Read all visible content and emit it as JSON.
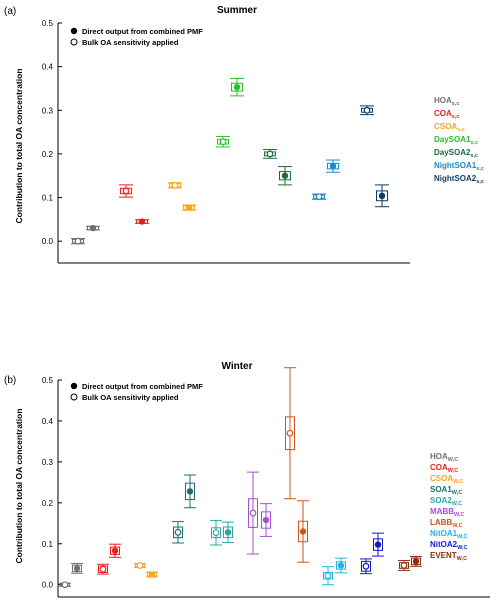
{
  "chart_data": [
    {
      "type": "scatter",
      "panel_label": "(a)",
      "title": "Summer",
      "ylabel": "Contribution to total OA concentration",
      "ylim": [
        -0.05,
        0.5
      ],
      "yticks": [
        "0.0",
        "0.1",
        "0.2",
        "0.3",
        "0.4",
        "0.5"
      ],
      "grid": false,
      "legend": {
        "placement": "top-left",
        "entries": [
          "Direct output from combined PMF",
          "Bulk OA sensitivity applied"
        ]
      },
      "categories": [
        {
          "name": "HOA",
          "sub": "s,c",
          "color": "#707070"
        },
        {
          "name": "COA",
          "sub": "s,c",
          "color": "#ee1c1c"
        },
        {
          "name": "CSOA",
          "sub": "s,c",
          "color": "#f5a623"
        },
        {
          "name": "DaySOA1",
          "sub": "s,c",
          "color": "#2dbd2d"
        },
        {
          "name": "DaySOA2",
          "sub": "s,c",
          "color": "#1e6b3a"
        },
        {
          "name": "NightSOA1",
          "sub": "s,c",
          "color": "#1b8ac9"
        },
        {
          "name": "NightSOA2",
          "sub": "s,c",
          "color": "#0d3d63"
        }
      ],
      "series": [
        {
          "name": "Bulk OA sensitivity applied",
          "values": [
            0.0,
            0.115,
            0.128,
            0.228,
            0.2,
            0.102,
            0.3
          ]
        },
        {
          "name": "Direct output from combined PMF",
          "values": [
            0.03,
            0.045,
            0.077,
            0.353,
            0.15,
            0.172,
            0.104
          ]
        }
      ]
    },
    {
      "type": "scatter",
      "panel_label": "(b)",
      "title": "Winter",
      "ylabel": "Contribution to total OA concentration",
      "ylim": [
        -0.03,
        0.5
      ],
      "yticks": [
        "0.0",
        "0.1",
        "0.2",
        "0.3",
        "0.4",
        "0.5"
      ],
      "grid": false,
      "legend": {
        "placement": "top-left",
        "entries": [
          "Direct output from combined PMF",
          "Bulk OA sensitivity applied"
        ]
      },
      "categories": [
        {
          "name": "HOA",
          "sub": "W,C",
          "color": "#707070"
        },
        {
          "name": "COA",
          "sub": "W,C",
          "color": "#ee1c1c"
        },
        {
          "name": "CSOA",
          "sub": "W,C",
          "color": "#f5a623"
        },
        {
          "name": "SOA1",
          "sub": "W,C",
          "color": "#1f6e6a"
        },
        {
          "name": "SOA2",
          "sub": "W,C",
          "color": "#27a8a3"
        },
        {
          "name": "MABB",
          "sub": "W,C",
          "color": "#a24fd6"
        },
        {
          "name": "LABB",
          "sub": "W,C",
          "color": "#d2541c"
        },
        {
          "name": "NitOA1",
          "sub": "W,C",
          "color": "#22b2e8"
        },
        {
          "name": "NitOA2",
          "sub": "W,C",
          "color": "#1818c8"
        },
        {
          "name": "EVENT",
          "sub": "W,C",
          "color": "#8b2d12"
        }
      ],
      "series": [
        {
          "name": "Bulk OA sensitivity applied",
          "values": [
            0.0,
            0.038,
            0.047,
            0.128,
            0.127,
            0.175,
            0.37,
            0.022,
            0.045,
            0.047
          ]
        },
        {
          "name": "Direct output from combined PMF",
          "values": [
            0.04,
            0.083,
            0.025,
            0.228,
            0.128,
            0.158,
            0.13,
            0.047,
            0.098,
            0.057
          ]
        }
      ]
    }
  ]
}
